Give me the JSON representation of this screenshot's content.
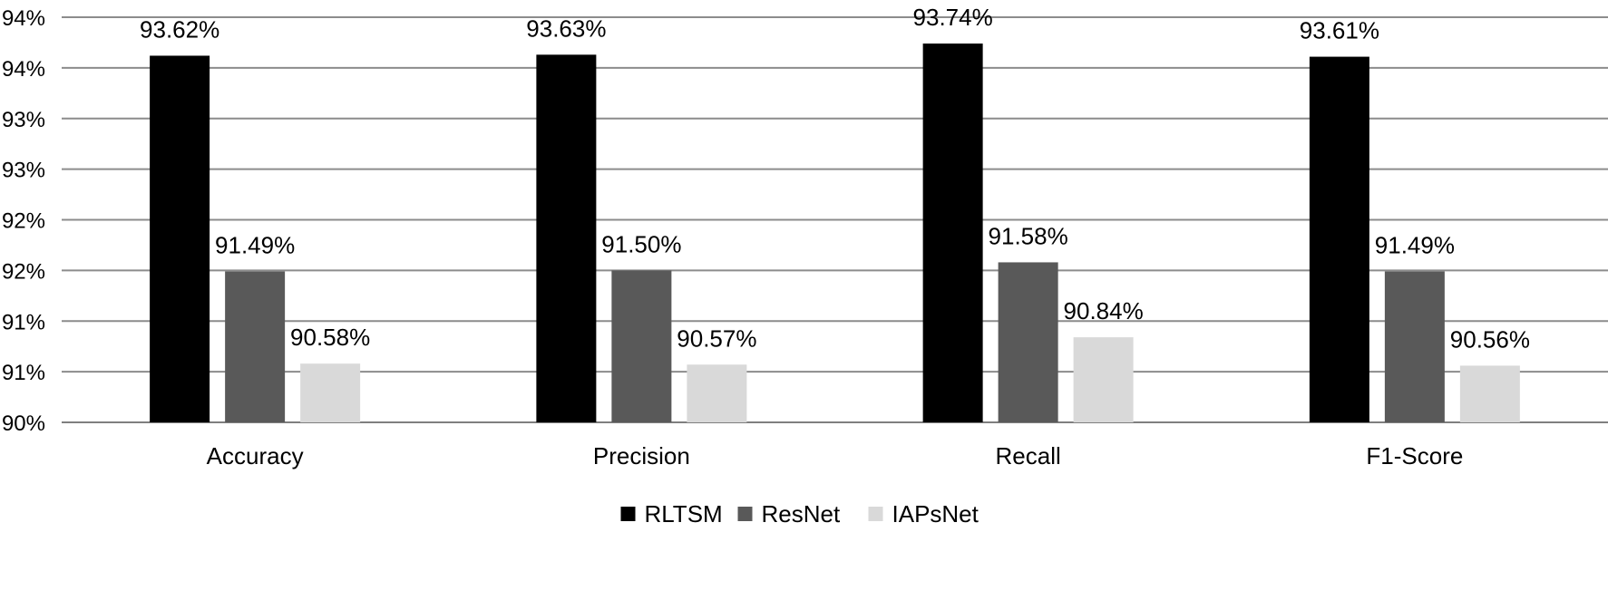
{
  "chart_data": {
    "type": "bar",
    "categories": [
      "Accuracy",
      "Precision",
      "Recall",
      "F1-Score"
    ],
    "series": [
      {
        "name": "RLTSM",
        "color": "#000000",
        "values": [
          93.62,
          93.63,
          93.74,
          93.61
        ],
        "labels": [
          "93.62%",
          "93.63%",
          "93.74%",
          "93.61%"
        ]
      },
      {
        "name": "ResNet",
        "color": "#595959",
        "values": [
          91.49,
          91.5,
          91.58,
          91.49
        ],
        "labels": [
          "91.49%",
          "91.50%",
          "91.58%",
          "91.49%"
        ]
      },
      {
        "name": "IAPsNet",
        "color": "#d9d9d9",
        "values": [
          90.58,
          90.57,
          90.84,
          90.56
        ],
        "labels": [
          "90.58%",
          "90.57%",
          "90.84%",
          "90.56%"
        ]
      }
    ],
    "ylim": [
      90.0,
      94.0
    ],
    "yticks": [
      90.0,
      90.5,
      91.0,
      91.5,
      92.0,
      92.5,
      93.0,
      93.5,
      94.0
    ],
    "ytick_labels": [
      "90%",
      "91%",
      "91%",
      "92%",
      "92%",
      "93%",
      "93%",
      "94%",
      "94%"
    ],
    "grid": true,
    "legend": "bottom",
    "title": "",
    "xlabel": "",
    "ylabel": ""
  }
}
